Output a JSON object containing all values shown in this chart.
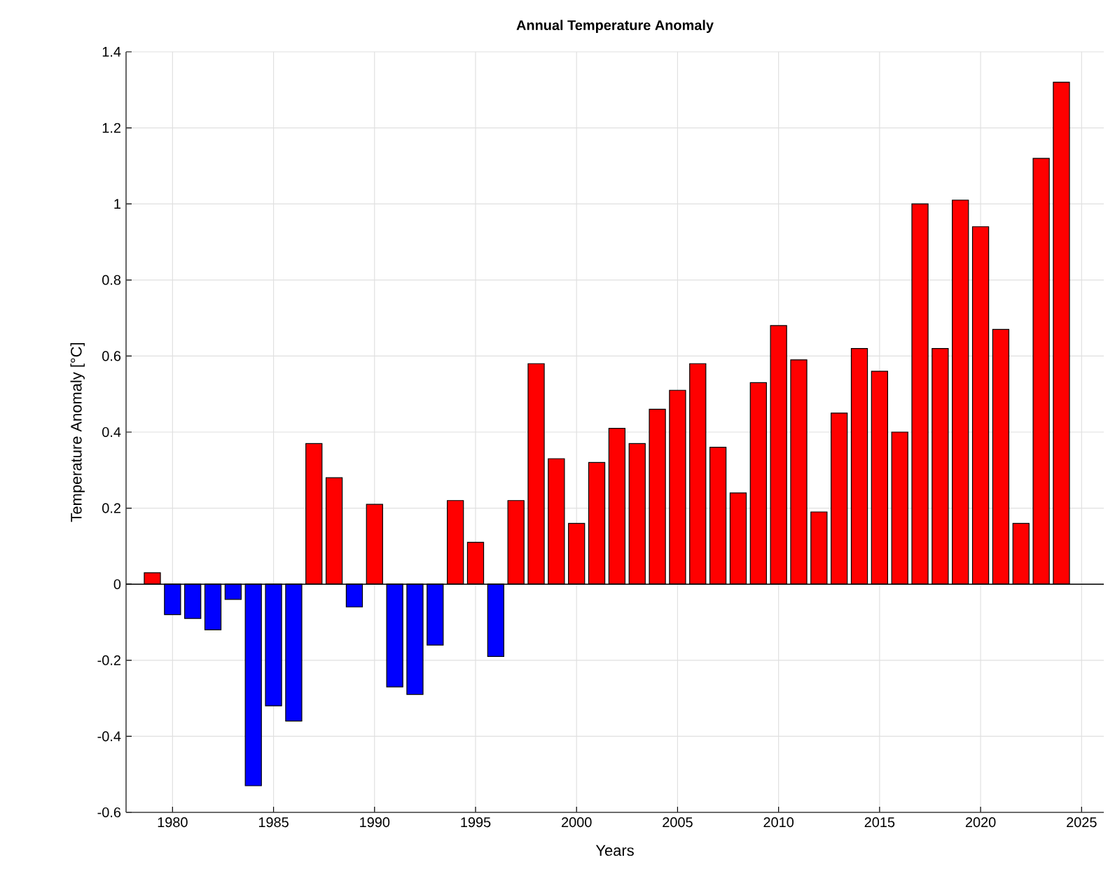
{
  "chart_data": {
    "type": "bar",
    "title": "**Annual Temperature Anomaly**",
    "xlabel": "Years",
    "ylabel": "Temperature Anomaly [°C]",
    "x": [
      1979,
      1980,
      1981,
      1982,
      1983,
      1984,
      1985,
      1986,
      1987,
      1988,
      1989,
      1990,
      1991,
      1992,
      1993,
      1994,
      1995,
      1996,
      1997,
      1998,
      1999,
      2000,
      2001,
      2002,
      2003,
      2004,
      2005,
      2006,
      2007,
      2008,
      2009,
      2010,
      2011,
      2012,
      2013,
      2014,
      2015,
      2016,
      2017,
      2018,
      2019,
      2020,
      2021,
      2022,
      2023,
      2024
    ],
    "values": [
      0.03,
      -0.08,
      -0.09,
      -0.12,
      -0.04,
      -0.53,
      -0.32,
      -0.36,
      0.37,
      0.28,
      -0.06,
      0.21,
      -0.27,
      -0.29,
      -0.16,
      0.22,
      0.11,
      -0.19,
      0.22,
      0.58,
      0.33,
      0.16,
      0.32,
      0.41,
      0.37,
      0.46,
      0.51,
      0.58,
      0.36,
      0.24,
      0.53,
      0.68,
      0.59,
      0.19,
      0.45,
      0.62,
      0.56,
      0.4,
      1.0,
      0.62,
      1.01,
      0.94,
      0.67,
      0.16,
      1.12,
      1.32
    ],
    "colors": [
      "#ff0000",
      "#0000ff",
      "#0000ff",
      "#0000ff",
      "#0000ff",
      "#0000ff",
      "#0000ff",
      "#0000ff",
      "#ff0000",
      "#ff0000",
      "#0000ff",
      "#ff0000",
      "#0000ff",
      "#0000ff",
      "#0000ff",
      "#ff0000",
      "#ff0000",
      "#0000ff",
      "#ff0000",
      "#ff0000",
      "#ff0000",
      "#ff0000",
      "#ff0000",
      "#ff0000",
      "#ff0000",
      "#ff0000",
      "#ff0000",
      "#ff0000",
      "#ff0000",
      "#ff0000",
      "#ff0000",
      "#ff0000",
      "#ff0000",
      "#ff0000",
      "#ff0000",
      "#ff0000",
      "#ff0000",
      "#ff0000",
      "#ff0000",
      "#ff0000",
      "#ff0000",
      "#ff0000",
      "#ff0000",
      "#ff0000",
      "#ff0000",
      "#ff0000"
    ],
    "xlim": [
      1977.7,
      2026.1
    ],
    "xticks": [
      1980,
      1985,
      1990,
      1995,
      2000,
      2005,
      2010,
      2015,
      2020,
      2025
    ],
    "ylim": [
      -0.6,
      1.4
    ],
    "yticks": [
      -0.6,
      -0.4,
      -0.2,
      0,
      0.2,
      0.4,
      0.6,
      0.8,
      1,
      1.2,
      1.4
    ],
    "ref_lines": [
      {
        "axis": "y",
        "value": 0,
        "color": "#000000"
      }
    ],
    "grid": true
  }
}
